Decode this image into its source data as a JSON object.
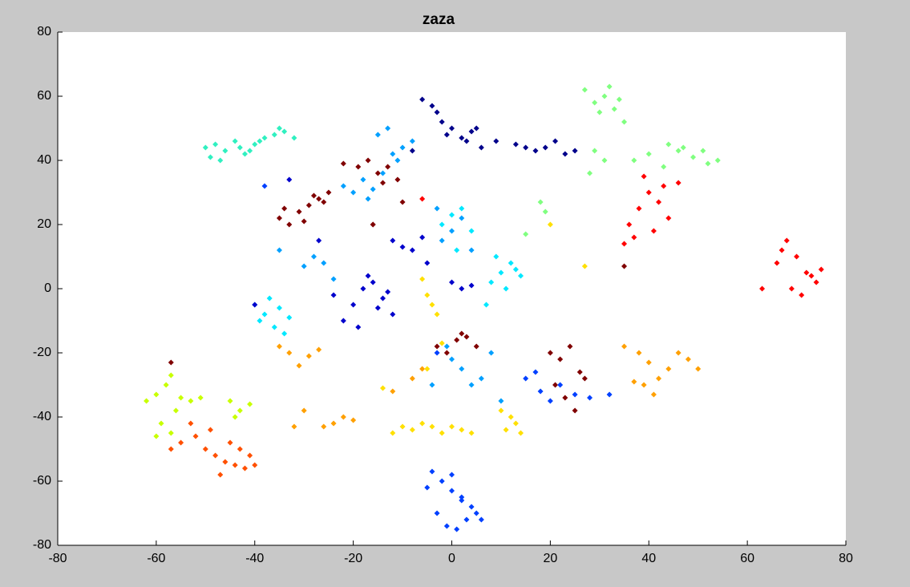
{
  "chart_data": {
    "type": "scatter",
    "title": "zaza",
    "xlim": [
      -80,
      80
    ],
    "ylim": [
      -80,
      80
    ],
    "xticks": [
      -80,
      -60,
      -40,
      -20,
      0,
      20,
      40,
      60,
      80
    ],
    "yticks": [
      -80,
      -60,
      -40,
      -20,
      0,
      20,
      40,
      60,
      80
    ],
    "grid": false,
    "series": [
      {
        "color": "#800000",
        "x": [
          -35,
          -33,
          -31,
          -29,
          -27,
          -25,
          -34,
          -30,
          -28,
          -26,
          -19,
          -17,
          -15,
          -13,
          -11,
          -14,
          -16,
          -10,
          20,
          22,
          24,
          26,
          21,
          23,
          25,
          27,
          -3,
          -1,
          1,
          3,
          5,
          -57,
          35,
          -16,
          -22,
          2
        ],
        "y": [
          22,
          20,
          24,
          26,
          28,
          30,
          25,
          21,
          29,
          27,
          38,
          40,
          36,
          38,
          34,
          33,
          20,
          27,
          -20,
          -22,
          -18,
          -26,
          -30,
          -34,
          -38,
          -28,
          -18,
          -20,
          -16,
          -15,
          -18,
          -23,
          7,
          20,
          39,
          -14
        ]
      },
      {
        "color": "#ff0000",
        "x": [
          36,
          38,
          40,
          42,
          44,
          39,
          41,
          43,
          37,
          35,
          46,
          68,
          70,
          72,
          74,
          66,
          69,
          71,
          73,
          75,
          67,
          63,
          -6
        ],
        "y": [
          20,
          25,
          30,
          27,
          22,
          35,
          18,
          32,
          16,
          14,
          33,
          15,
          10,
          5,
          2,
          8,
          0,
          -2,
          4,
          6,
          12,
          0,
          28
        ]
      },
      {
        "color": "#ff5000",
        "x": [
          -55,
          -52,
          -50,
          -48,
          -46,
          -44,
          -42,
          -40,
          -53,
          -49,
          -45,
          -41,
          -47,
          -43,
          -57
        ],
        "y": [
          -48,
          -46,
          -50,
          -52,
          -54,
          -55,
          -56,
          -55,
          -42,
          -44,
          -48,
          -52,
          -58,
          -50,
          -50
        ]
      },
      {
        "color": "#ffa000",
        "x": [
          35,
          38,
          40,
          42,
          44,
          46,
          48,
          50,
          39,
          41,
          37,
          -35,
          -33,
          -31,
          -29,
          -27,
          -30,
          -24,
          -22,
          -20,
          -26,
          -32,
          -12,
          -8,
          -6
        ],
        "y": [
          -18,
          -20,
          -23,
          -28,
          -25,
          -20,
          -22,
          -25,
          -30,
          -33,
          -29,
          -18,
          -20,
          -24,
          -21,
          -19,
          -38,
          -42,
          -40,
          -41,
          -43,
          -43,
          -32,
          -28,
          -25
        ]
      },
      {
        "color": "#ffe000",
        "x": [
          -12,
          -10,
          -8,
          -6,
          -4,
          -2,
          0,
          2,
          4,
          -5,
          -4,
          -3,
          -6,
          10,
          12,
          14,
          13,
          11,
          -5,
          -2,
          27,
          20,
          -14
        ],
        "y": [
          -45,
          -43,
          -44,
          -42,
          -43,
          -45,
          -43,
          -44,
          -45,
          -2,
          -5,
          -8,
          3,
          -38,
          -40,
          -45,
          -42,
          -44,
          -25,
          -17,
          7,
          20,
          -31
        ]
      },
      {
        "color": "#c8ff00",
        "x": [
          -62,
          -60,
          -58,
          -57,
          -56,
          -59,
          -55,
          -57,
          -53,
          -51,
          -45,
          -43,
          -41,
          -44,
          -60
        ],
        "y": [
          -35,
          -33,
          -30,
          -27,
          -38,
          -42,
          -34,
          -45,
          -35,
          -34,
          -35,
          -38,
          -36,
          -40,
          -46
        ]
      },
      {
        "color": "#80ff80",
        "x": [
          27,
          29,
          31,
          33,
          30,
          32,
          34,
          35,
          37,
          40,
          43,
          46,
          49,
          52,
          54,
          44,
          47,
          51,
          18,
          19,
          29,
          31,
          28,
          15
        ],
        "y": [
          62,
          58,
          60,
          56,
          55,
          63,
          59,
          52,
          40,
          42,
          38,
          43,
          41,
          39,
          40,
          45,
          44,
          43,
          27,
          24,
          43,
          40,
          36,
          17
        ]
      },
      {
        "color": "#30f0c0",
        "x": [
          -50,
          -48,
          -46,
          -44,
          -42,
          -40,
          -38,
          -36,
          -34,
          -32,
          -47,
          -43,
          -39,
          -35,
          -49,
          -41
        ],
        "y": [
          44,
          45,
          43,
          46,
          42,
          45,
          47,
          48,
          49,
          47,
          40,
          44,
          46,
          50,
          41,
          43
        ]
      },
      {
        "color": "#00e8ff",
        "x": [
          -40,
          -38,
          -36,
          -34,
          -37,
          -39,
          -35,
          -33,
          8,
          10,
          12,
          14,
          9,
          11,
          13,
          -2,
          0,
          2,
          4,
          1,
          7
        ],
        "y": [
          -5,
          -8,
          -12,
          -14,
          -3,
          -10,
          -6,
          -9,
          2,
          5,
          8,
          4,
          10,
          0,
          6,
          20,
          23,
          25,
          18,
          12,
          -5
        ]
      },
      {
        "color": "#00a0ff",
        "x": [
          -22,
          -20,
          -18,
          -16,
          -14,
          -12,
          -10,
          -8,
          -15,
          -13,
          -11,
          -17,
          -2,
          0,
          2,
          4,
          -3,
          -30,
          -28,
          -26,
          -24,
          -35,
          0,
          2,
          4,
          6,
          8,
          -4,
          -1,
          10
        ],
        "y": [
          32,
          30,
          34,
          31,
          36,
          42,
          44,
          46,
          48,
          50,
          40,
          28,
          15,
          18,
          22,
          12,
          25,
          7,
          10,
          8,
          3,
          12,
          -22,
          -25,
          -30,
          -28,
          -20,
          -30,
          -18,
          -35
        ]
      },
      {
        "color": "#0040ff",
        "x": [
          -4,
          -2,
          0,
          2,
          4,
          6,
          -3,
          -1,
          1,
          3,
          5,
          0,
          2,
          -5,
          15,
          18,
          20,
          22,
          25,
          28,
          32,
          17,
          -38,
          -3
        ],
        "y": [
          -57,
          -60,
          -63,
          -65,
          -68,
          -72,
          -70,
          -74,
          -75,
          -72,
          -70,
          -58,
          -66,
          -62,
          -28,
          -32,
          -35,
          -30,
          -33,
          -34,
          -33,
          -26,
          32,
          -20
        ]
      },
      {
        "color": "#0000cc",
        "x": [
          -20,
          -18,
          -16,
          -14,
          -12,
          -22,
          -19,
          -15,
          -17,
          -13,
          -24,
          -12,
          -10,
          -8,
          -6,
          0,
          2,
          4,
          -40,
          -33,
          -27,
          -5
        ],
        "y": [
          -5,
          0,
          2,
          -3,
          -8,
          -10,
          -12,
          -6,
          4,
          -1,
          -2,
          15,
          13,
          12,
          16,
          2,
          0,
          1,
          -5,
          34,
          15,
          8
        ]
      },
      {
        "color": "#00008b",
        "x": [
          -6,
          -4,
          -2,
          0,
          2,
          4,
          6,
          -1,
          3,
          5,
          -3,
          13,
          15,
          17,
          19,
          21,
          23,
          25,
          9,
          -8
        ],
        "y": [
          59,
          57,
          52,
          50,
          47,
          49,
          44,
          48,
          46,
          50,
          55,
          45,
          44,
          43,
          44,
          46,
          42,
          43,
          46,
          43
        ]
      }
    ]
  }
}
